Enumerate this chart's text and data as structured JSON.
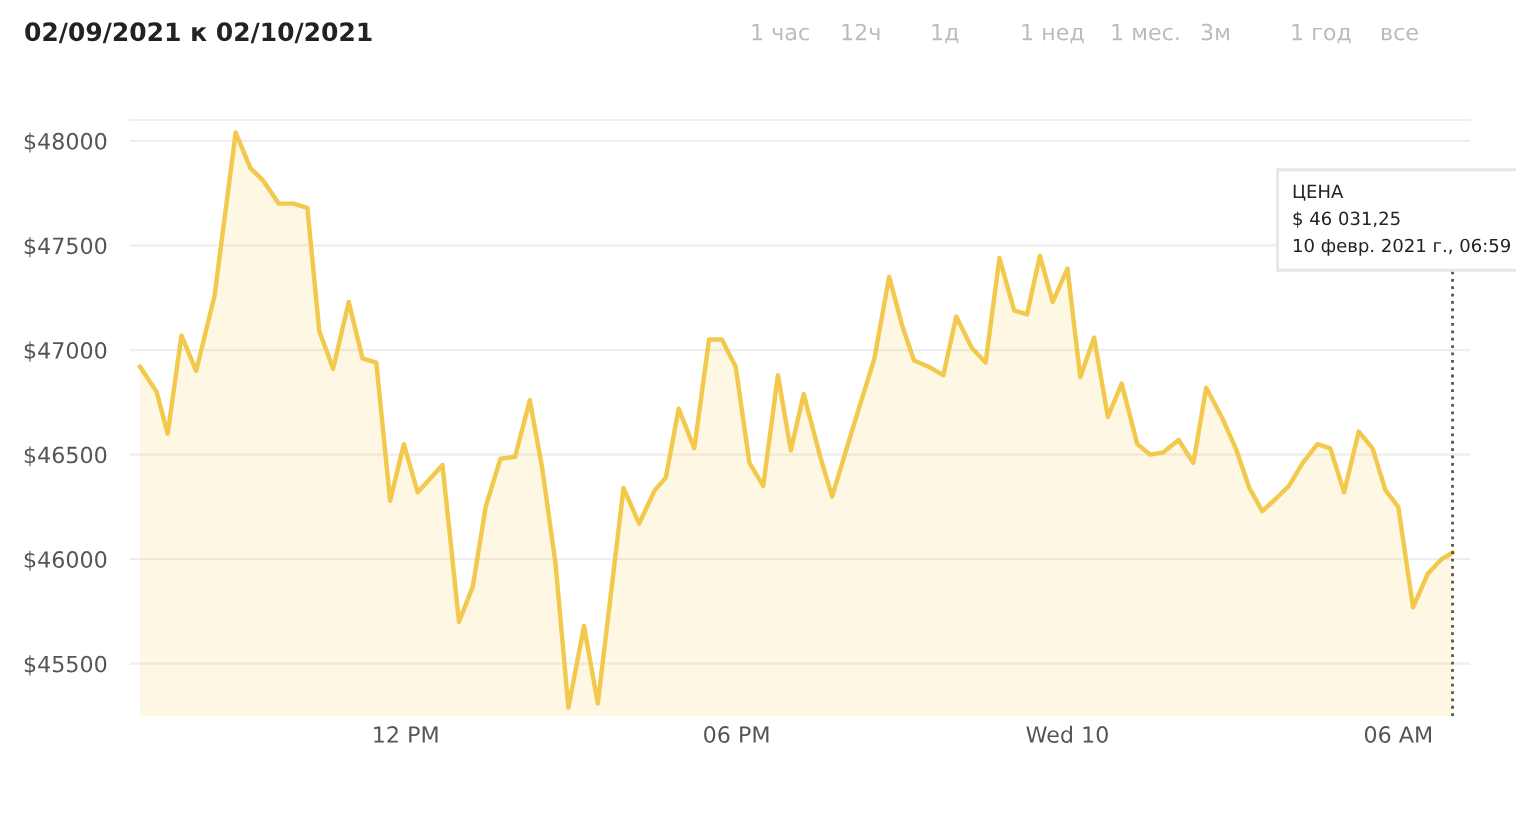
{
  "chart_data": {
    "type": "area",
    "title": "02/09/2021 к 02/10/2021",
    "x": [
      "2021-02-09T07:11",
      "2021-02-09T07:29",
      "2021-02-09T07:41",
      "2021-02-09T07:56",
      "2021-02-09T08:12",
      "2021-02-09T08:32",
      "2021-02-09T08:55",
      "2021-02-09T09:11",
      "2021-02-09T09:25",
      "2021-02-09T09:42",
      "2021-02-09T09:58",
      "2021-02-09T10:13",
      "2021-02-09T10:26",
      "2021-02-09T10:41",
      "2021-02-09T10:58",
      "2021-02-09T11:13",
      "2021-02-09T11:28",
      "2021-02-09T11:43",
      "2021-02-09T11:58",
      "2021-02-09T12:13",
      "2021-02-09T12:40",
      "2021-02-09T12:58",
      "2021-02-09T13:13",
      "2021-02-09T13:27",
      "2021-02-09T13:43",
      "2021-02-09T13:59",
      "2021-02-09T14:15",
      "2021-02-09T14:28",
      "2021-02-09T14:43",
      "2021-02-09T14:57",
      "2021-02-09T15:14",
      "2021-02-09T15:29",
      "2021-02-09T15:57",
      "2021-02-09T16:14",
      "2021-02-09T16:31",
      "2021-02-09T16:43",
      "2021-02-09T16:57",
      "2021-02-09T17:14",
      "2021-02-09T17:30",
      "2021-02-09T17:44",
      "2021-02-09T17:59",
      "2021-02-09T18:14",
      "2021-02-09T18:29",
      "2021-02-09T18:45",
      "2021-02-09T18:59",
      "2021-02-09T19:13",
      "2021-02-09T19:31",
      "2021-02-09T19:44",
      "2021-02-09T20:06",
      "2021-02-09T20:30",
      "2021-02-09T20:46",
      "2021-02-09T21:00",
      "2021-02-09T21:13",
      "2021-02-09T21:29",
      "2021-02-09T21:45",
      "2021-02-09T21:59",
      "2021-02-09T22:16",
      "2021-02-09T22:31",
      "2021-02-09T22:46",
      "2021-02-09T23:02",
      "2021-02-09T23:16",
      "2021-02-09T23:30",
      "2021-02-09T23:44",
      "2021-02-10T00:00",
      "2021-02-10T00:14",
      "2021-02-10T00:29",
      "2021-02-10T00:44",
      "2021-02-10T00:59",
      "2021-02-10T01:16",
      "2021-02-10T01:30",
      "2021-02-10T01:44",
      "2021-02-10T02:01",
      "2021-02-10T02:17",
      "2021-02-10T02:31",
      "2021-02-10T02:49",
      "2021-02-10T03:04",
      "2021-02-10T03:18",
      "2021-02-10T03:32",
      "2021-02-10T03:47",
      "2021-02-10T04:01",
      "2021-02-10T04:16",
      "2021-02-10T04:32",
      "2021-02-10T04:46",
      "2021-02-10T05:01",
      "2021-02-10T05:17",
      "2021-02-10T05:32",
      "2021-02-10T05:46",
      "2021-02-10T06:00",
      "2021-02-10T06:16",
      "2021-02-10T06:32",
      "2021-02-10T06:47",
      "2021-02-10T06:59"
    ],
    "series": [
      {
        "color": "#f2c94c",
        "values": [
          46920,
          46800,
          46600,
          47070,
          46900,
          47260,
          48040,
          47870,
          47810,
          47700,
          47700,
          47680,
          47090,
          46910,
          47230,
          46960,
          46940,
          46280,
          46550,
          46320,
          46450,
          45700,
          45870,
          46250,
          46480,
          46490,
          46760,
          46450,
          45980,
          45290,
          45680,
          45310,
          46340,
          46170,
          46330,
          46390,
          46720,
          46530,
          47050,
          47050,
          46920,
          46460,
          46350,
          46880,
          46520,
          46790,
          46490,
          46300,
          46620,
          46960,
          47350,
          47120,
          46950,
          46920,
          46880,
          47160,
          47010,
          46940,
          47440,
          47190,
          47170,
          47450,
          47230,
          47390,
          46870,
          47060,
          46680,
          46840,
          46550,
          46500,
          46510,
          46570,
          46460,
          46820,
          46670,
          46520,
          46340,
          46230,
          46290,
          46350,
          46460,
          46550,
          46530,
          46320,
          46610,
          46530,
          46330,
          46250,
          45770,
          45930,
          46000,
          46031.25
        ]
      }
    ],
    "xlim": [
      "2021-02-09T07:00",
      "2021-02-10T07:18"
    ],
    "xticks": [
      {
        "value": "2021-02-09T12:00",
        "label": "12 PM"
      },
      {
        "value": "2021-02-09T18:00",
        "label": "06 PM"
      },
      {
        "value": "2021-02-10T00:00",
        "label": "Wed 10"
      },
      {
        "value": "2021-02-10T06:00",
        "label": "06 AM"
      }
    ],
    "ylim": [
      45250,
      48100
    ],
    "yticks": [
      {
        "value": 45500,
        "label": "$45500"
      },
      {
        "value": 46000,
        "label": "$46000"
      },
      {
        "value": 46500,
        "label": "$46500"
      },
      {
        "value": 47000,
        "label": "$47000"
      },
      {
        "value": 47500,
        "label": "$47500"
      },
      {
        "value": 48000,
        "label": "$48000"
      }
    ],
    "grid": "y",
    "legend": false,
    "ref_lines": [
      {
        "axis": "x",
        "value": "2021-02-10T06:59",
        "color": "#555555",
        "line_style": "dotted"
      }
    ],
    "annotations": [
      "1 час",
      "12ч",
      "1д",
      "1 нед",
      "1 мес.",
      "3м",
      "1 год",
      "все",
      "ЦЕНА\n$ 46 031,25\n10 февр. 2021 г., 06:59"
    ]
  }
}
